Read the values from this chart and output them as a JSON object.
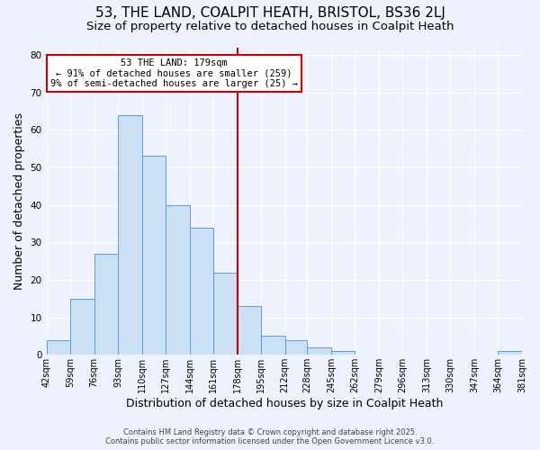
{
  "title": "53, THE LAND, COALPIT HEATH, BRISTOL, BS36 2LJ",
  "subtitle": "Size of property relative to detached houses in Coalpit Heath",
  "xlabel": "Distribution of detached houses by size in Coalpit Heath",
  "ylabel": "Number of detached properties",
  "bin_edges": [
    42,
    59,
    76,
    93,
    110,
    127,
    144,
    161,
    178,
    195,
    212,
    228,
    245,
    262,
    279,
    296,
    313,
    330,
    347,
    364,
    381
  ],
  "bar_heights": [
    4,
    15,
    27,
    64,
    53,
    40,
    34,
    22,
    13,
    5,
    4,
    2,
    1,
    0,
    0,
    0,
    0,
    0,
    0,
    1
  ],
  "bar_facecolor": "#cce0f5",
  "bar_edgecolor": "#5b9bd5",
  "vline_x": 178,
  "vline_color": "#cc0000",
  "ylim": [
    0,
    82
  ],
  "yticks": [
    0,
    10,
    20,
    30,
    40,
    50,
    60,
    70,
    80
  ],
  "annotation_title": "53 THE LAND: 179sqm",
  "annotation_line1": "← 91% of detached houses are smaller (259)",
  "annotation_line2": "9% of semi-detached houses are larger (25) →",
  "annotation_box_edgecolor": "#cc0000",
  "annotation_box_facecolor": "#ffffff",
  "background_color": "#eef2ff",
  "footer_line1": "Contains HM Land Registry data © Crown copyright and database right 2025.",
  "footer_line2": "Contains public sector information licensed under the Open Government Licence v3.0.",
  "title_fontsize": 11,
  "subtitle_fontsize": 9.5,
  "tick_label_fontsize": 7,
  "axis_label_fontsize": 9,
  "footer_fontsize": 6
}
